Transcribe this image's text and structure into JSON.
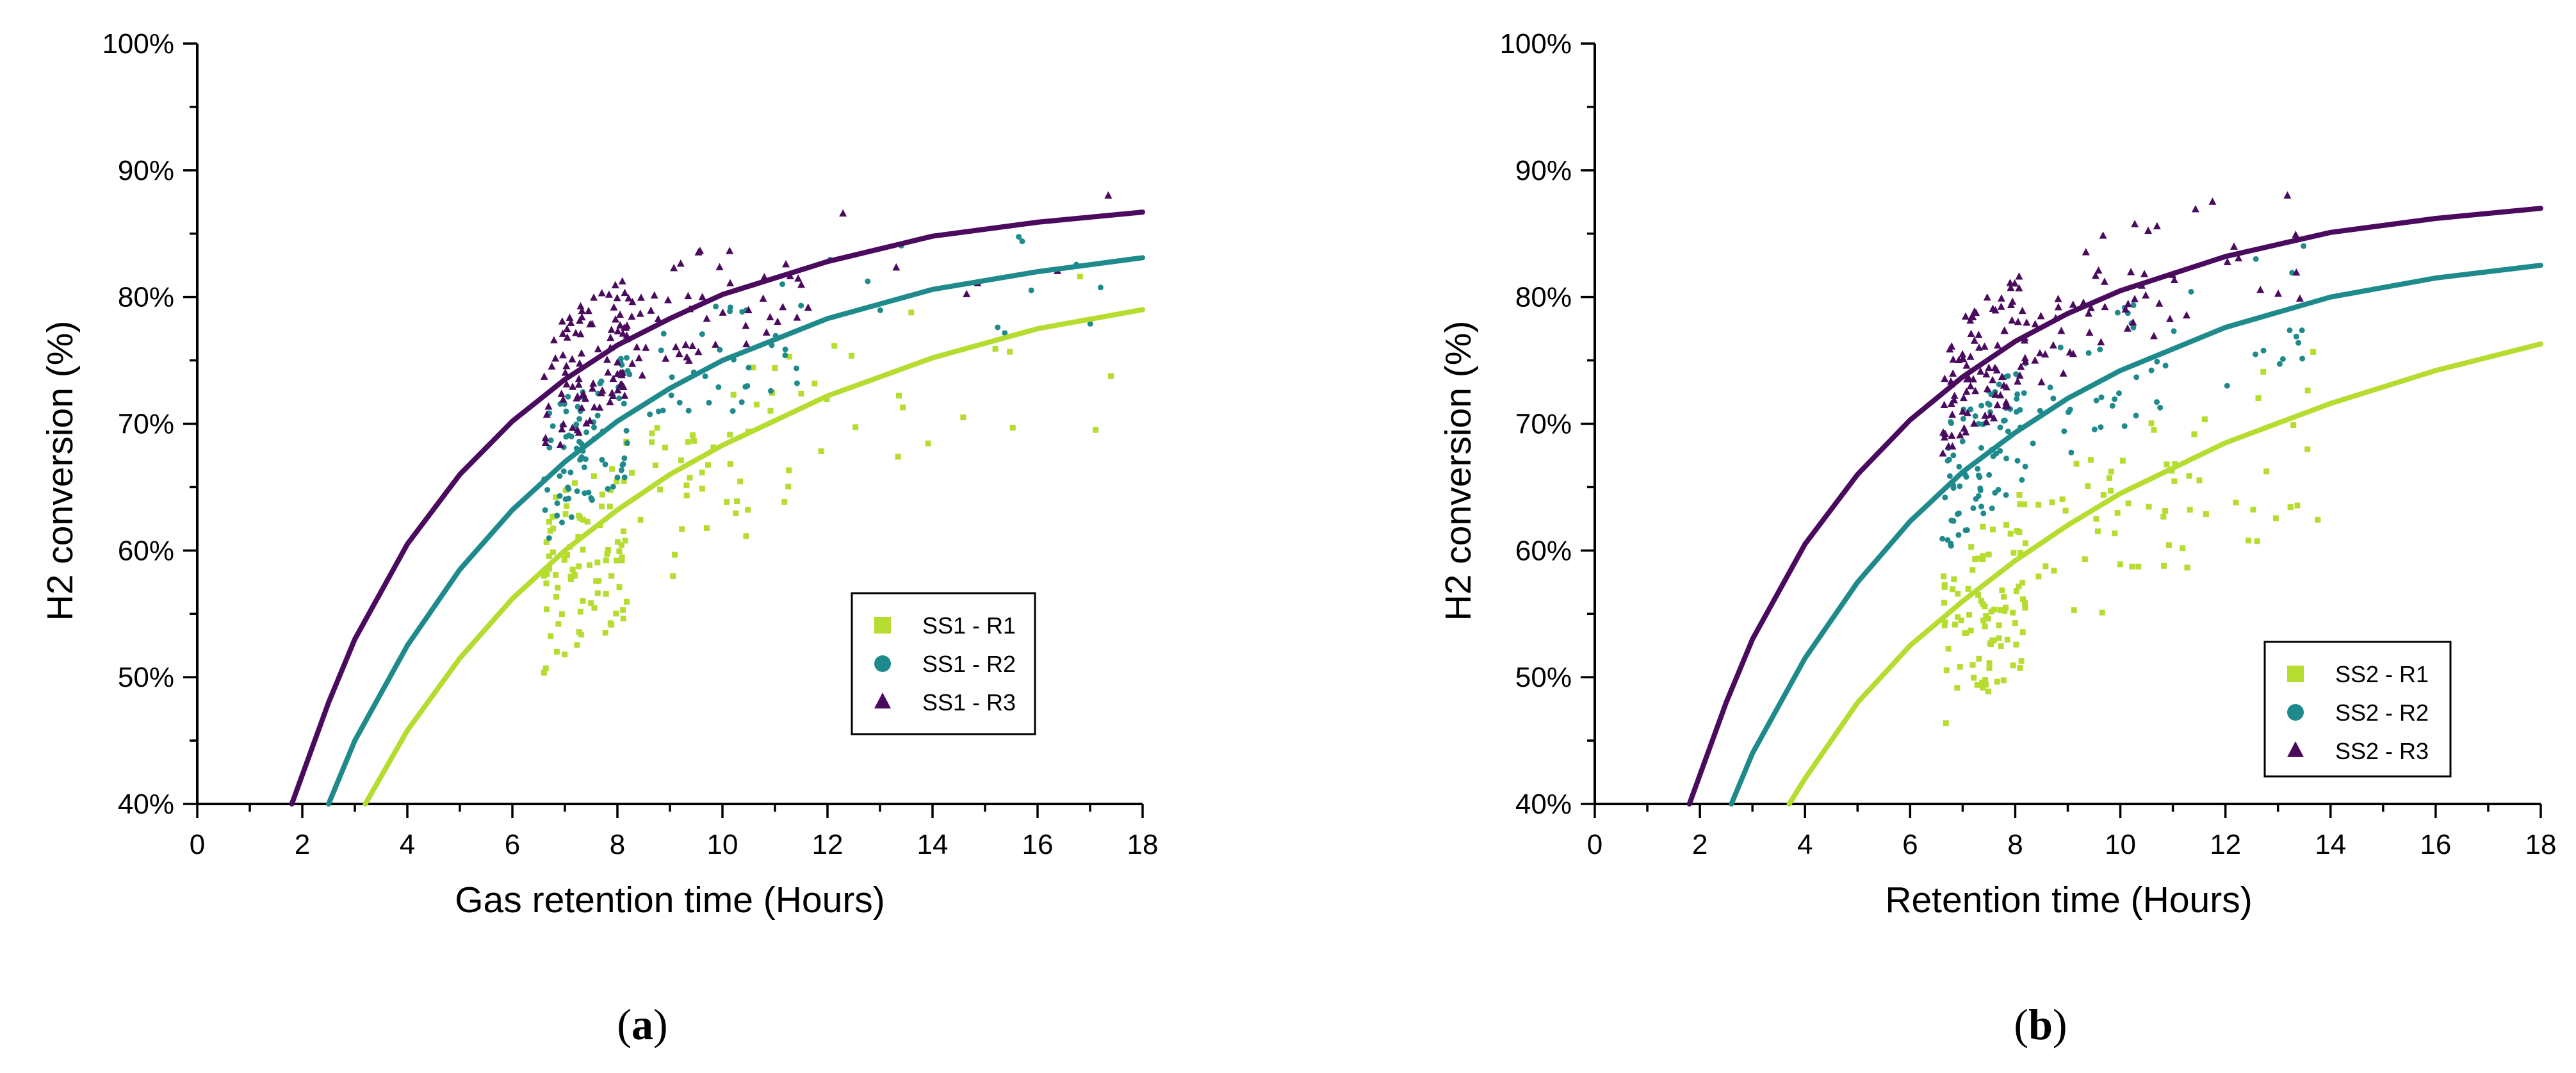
{
  "colors": {
    "R1": "#b5dc2f",
    "R2": "#1f8a8c",
    "R3": "#4a0a5e"
  },
  "chart_data": [
    {
      "type": "scatter",
      "panel_label": "a",
      "xlabel": "Gas retention time (Hours)",
      "ylabel": "H2 conversion (%)",
      "xlim": [
        0,
        18
      ],
      "ylim": [
        40,
        100
      ],
      "x_ticks": [
        "0",
        "2",
        "4",
        "6",
        "8",
        "10",
        "12",
        "14",
        "16",
        "18"
      ],
      "y_ticks": [
        "40%",
        "50%",
        "60%",
        "70%",
        "80%",
        "90%",
        "100%"
      ],
      "legend_position": "right-middle",
      "series": [
        {
          "name": "SS1 - R1",
          "marker": "square",
          "color_key": "R1",
          "fit": [
            [
              3.2,
              40
            ],
            [
              4,
              45.8
            ],
            [
              5,
              51.5
            ],
            [
              6,
              56.2
            ],
            [
              7,
              60
            ],
            [
              8,
              63.2
            ],
            [
              9,
              66
            ],
            [
              10,
              68.3
            ],
            [
              12,
              72.2
            ],
            [
              14,
              75.2
            ],
            [
              16,
              77.5
            ],
            [
              18,
              79
            ]
          ]
        },
        {
          "name": "SS1 - R2",
          "marker": "circle",
          "color_key": "R2",
          "fit": [
            [
              2.5,
              40
            ],
            [
              3,
              45
            ],
            [
              4,
              52.5
            ],
            [
              5,
              58.5
            ],
            [
              6,
              63.2
            ],
            [
              7,
              67
            ],
            [
              8,
              70.2
            ],
            [
              9,
              72.8
            ],
            [
              10,
              75
            ],
            [
              12,
              78.3
            ],
            [
              14,
              80.6
            ],
            [
              16,
              82
            ],
            [
              18,
              83.1
            ]
          ]
        },
        {
          "name": "SS1 - R3",
          "marker": "triangle",
          "color_key": "R3",
          "fit": [
            [
              1.8,
              40
            ],
            [
              2.5,
              48
            ],
            [
              3,
              53
            ],
            [
              4,
              60.5
            ],
            [
              5,
              66
            ],
            [
              6,
              70.2
            ],
            [
              7,
              73.5
            ],
            [
              8,
              76.2
            ],
            [
              9,
              78.3
            ],
            [
              10,
              80.2
            ],
            [
              12,
              82.8
            ],
            [
              14,
              84.8
            ],
            [
              16,
              85.9
            ],
            [
              18,
              86.7
            ]
          ]
        }
      ]
    },
    {
      "type": "scatter",
      "panel_label": "b",
      "xlabel": "Retention time (Hours)",
      "ylabel": "H2 conversion (%)",
      "xlim": [
        0,
        18
      ],
      "ylim": [
        40,
        100
      ],
      "x_ticks": [
        "0",
        "2",
        "4",
        "6",
        "8",
        "10",
        "12",
        "14",
        "16",
        "18"
      ],
      "y_ticks": [
        "40%",
        "50%",
        "60%",
        "70%",
        "80%",
        "90%",
        "100%"
      ],
      "legend_position": "bottom-right",
      "series": [
        {
          "name": "SS2 - R1",
          "marker": "square",
          "color_key": "R1",
          "fit": [
            [
              3.7,
              40
            ],
            [
              4,
              42
            ],
            [
              5,
              48
            ],
            [
              6,
              52.5
            ],
            [
              7,
              56
            ],
            [
              8,
              59.2
            ],
            [
              9,
              62
            ],
            [
              10,
              64.5
            ],
            [
              12,
              68.5
            ],
            [
              14,
              71.6
            ],
            [
              16,
              74.2
            ],
            [
              18,
              76.3
            ]
          ]
        },
        {
          "name": "SS2 - R2",
          "marker": "circle",
          "color_key": "R2",
          "fit": [
            [
              2.6,
              40
            ],
            [
              3,
              44
            ],
            [
              4,
              51.5
            ],
            [
              5,
              57.5
            ],
            [
              6,
              62.3
            ],
            [
              7,
              66.2
            ],
            [
              8,
              69.3
            ],
            [
              9,
              72
            ],
            [
              10,
              74.2
            ],
            [
              12,
              77.6
            ],
            [
              14,
              80
            ],
            [
              16,
              81.5
            ],
            [
              18,
              82.5
            ]
          ]
        },
        {
          "name": "SS2 - R3",
          "marker": "triangle",
          "color_key": "R3",
          "fit": [
            [
              1.8,
              40
            ],
            [
              2.5,
              48
            ],
            [
              3,
              53
            ],
            [
              4,
              60.5
            ],
            [
              5,
              66
            ],
            [
              6,
              70.3
            ],
            [
              7,
              73.7
            ],
            [
              8,
              76.5
            ],
            [
              9,
              78.7
            ],
            [
              10,
              80.5
            ],
            [
              12,
              83.2
            ],
            [
              14,
              85.1
            ],
            [
              16,
              86.2
            ],
            [
              18,
              87
            ]
          ]
        }
      ]
    }
  ]
}
